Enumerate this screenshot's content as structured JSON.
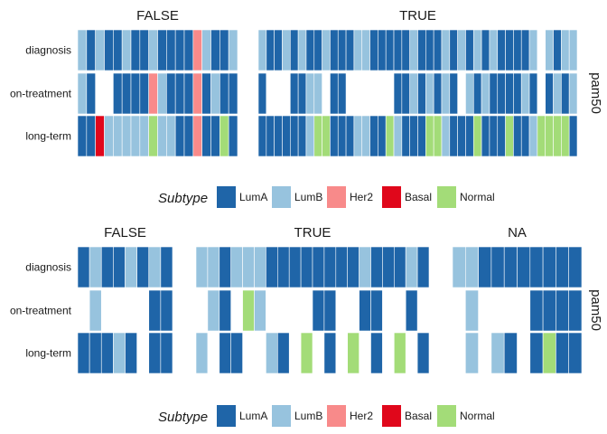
{
  "colors": {
    "LumA": "#1f65a8",
    "LumB": "#97c3de",
    "Her2": "#f88a8a",
    "Basal": "#e0071b",
    "Normal": "#a3dc78"
  },
  "chart_data": [
    {
      "type": "heatmap",
      "title": "",
      "side_label": "pam50",
      "rows": [
        "diagnosis",
        "on-treatment",
        "long-term"
      ],
      "category_order": [
        "LumA",
        "LumB",
        "Her2",
        "Basal",
        "Normal"
      ],
      "legend": {
        "title": "Subtype",
        "entries": [
          "LumA",
          "LumB",
          "Her2",
          "Basal",
          "Normal"
        ],
        "position": "bottom"
      },
      "panels": [
        {
          "label": "FALSE",
          "columns": 18,
          "cells": [
            [
              "LumB",
              "LumA",
              "LumB",
              "LumA",
              "LumA",
              "LumB",
              "LumA",
              "LumA",
              "LumB",
              "LumA",
              "LumA",
              "LumA",
              "LumA",
              "Her2",
              "LumB",
              "LumA",
              "LumA",
              "LumB"
            ],
            [
              "LumB",
              "LumA",
              "",
              "",
              "LumA",
              "LumA",
              "LumA",
              "LumA",
              "Her2",
              "LumB",
              "LumA",
              "LumA",
              "LumA",
              "Her2",
              "LumA",
              "LumB",
              "LumA",
              "LumA"
            ],
            [
              "LumA",
              "LumA",
              "Basal",
              "LumB",
              "LumB",
              "LumB",
              "LumB",
              "LumB",
              "Normal",
              "LumB",
              "LumB",
              "LumA",
              "LumA",
              "Her2",
              "LumA",
              "LumA",
              "Normal",
              "LumA"
            ]
          ]
        },
        {
          "label": "TRUE",
          "columns": 40,
          "cells": [
            [
              "LumB",
              "LumA",
              "LumA",
              "LumB",
              "LumA",
              "LumB",
              "LumA",
              "LumA",
              "LumB",
              "LumA",
              "LumA",
              "LumA",
              "LumB",
              "LumB",
              "LumA",
              "LumA",
              "LumA",
              "LumA",
              "LumA",
              "LumB",
              "LumA",
              "LumA",
              "LumA",
              "LumB",
              "LumA",
              "LumB",
              "LumA",
              "LumB",
              "LumA",
              "LumB",
              "LumA",
              "LumA",
              "LumA",
              "LumA",
              "LumB",
              "",
              "LumB",
              "LumA",
              "LumB",
              "LumB"
            ],
            [
              "LumA",
              "",
              "",
              "",
              "LumA",
              "LumA",
              "LumB",
              "LumB",
              "",
              "LumA",
              "LumA",
              "",
              "",
              "",
              "",
              "",
              "",
              "LumA",
              "LumA",
              "LumB",
              "LumA",
              "LumB",
              "LumA",
              "LumB",
              "LumA",
              "",
              "LumB",
              "LumA",
              "LumB",
              "LumA",
              "LumA",
              "LumA",
              "LumA",
              "LumB",
              "LumA",
              "",
              "LumA",
              "LumB",
              "LumA",
              "LumB"
            ],
            [
              "LumA",
              "LumA",
              "LumA",
              "LumA",
              "LumA",
              "LumA",
              "LumB",
              "Normal",
              "Normal",
              "LumA",
              "LumA",
              "LumA",
              "LumB",
              "LumB",
              "LumA",
              "LumA",
              "Normal",
              "LumB",
              "LumA",
              "LumA",
              "LumA",
              "Normal",
              "Normal",
              "LumB",
              "LumA",
              "LumA",
              "LumA",
              "Normal",
              "LumA",
              "LumA",
              "LumA",
              "Normal",
              "LumA",
              "LumA",
              "LumB",
              "Normal",
              "Normal",
              "Normal",
              "Normal",
              "LumA"
            ]
          ]
        }
      ]
    },
    {
      "type": "heatmap",
      "title": "",
      "side_label": "pam50",
      "rows": [
        "diagnosis",
        "on-treatment",
        "long-term"
      ],
      "category_order": [
        "LumA",
        "LumB",
        "Her2",
        "Basal",
        "Normal"
      ],
      "legend": {
        "title": "Subtype",
        "entries": [
          "LumA",
          "LumB",
          "Her2",
          "Basal",
          "Normal"
        ],
        "position": "bottom"
      },
      "panels": [
        {
          "label": "FALSE",
          "columns": 8,
          "cells": [
            [
              "LumA",
              "LumB",
              "LumA",
              "LumA",
              "LumB",
              "LumA",
              "LumB",
              "LumA"
            ],
            [
              "",
              "LumB",
              "",
              "",
              "",
              "",
              "LumA",
              "LumA"
            ],
            [
              "LumA",
              "LumA",
              "LumA",
              "LumB",
              "LumA",
              "",
              "LumA",
              "LumA"
            ]
          ]
        },
        {
          "label": "TRUE",
          "columns": 20,
          "cells": [
            [
              "LumB",
              "LumB",
              "LumA",
              "LumB",
              "LumB",
              "LumB",
              "LumA",
              "LumA",
              "LumA",
              "LumA",
              "LumA",
              "LumA",
              "LumA",
              "LumA",
              "LumB",
              "LumA",
              "LumA",
              "LumA",
              "LumB",
              "LumA"
            ],
            [
              "",
              "LumB",
              "LumA",
              "",
              "Normal",
              "LumB",
              "",
              "",
              "",
              "",
              "LumA",
              "LumA",
              "",
              "",
              "LumA",
              "LumA",
              "",
              "",
              "LumA",
              ""
            ],
            [
              "LumB",
              "",
              "LumA",
              "LumA",
              "",
              "",
              "LumB",
              "LumA",
              "",
              "Normal",
              "",
              "LumA",
              "",
              "Normal",
              "",
              "LumA",
              "",
              "Normal",
              "",
              "LumA"
            ]
          ]
        },
        {
          "label": "NA",
          "columns": 10,
          "cells": [
            [
              "LumB",
              "LumB",
              "LumA",
              "LumA",
              "LumA",
              "LumA",
              "LumA",
              "LumA",
              "LumA",
              "LumA"
            ],
            [
              "",
              "LumB",
              "",
              "",
              "",
              "",
              "LumA",
              "LumA",
              "LumA",
              "LumA"
            ],
            [
              "",
              "LumB",
              "",
              "LumB",
              "LumA",
              "",
              "LumA",
              "Normal",
              "LumA",
              "LumA"
            ]
          ]
        }
      ]
    }
  ]
}
